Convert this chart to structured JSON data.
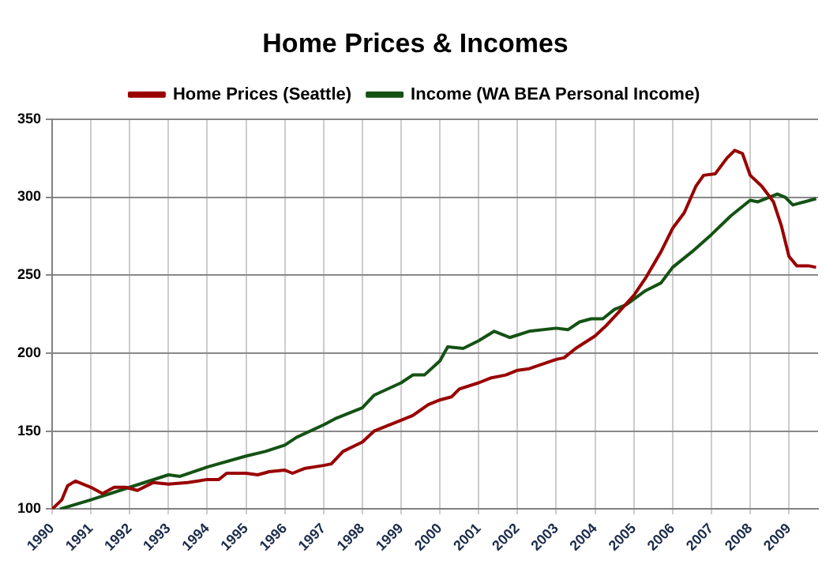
{
  "chart_data": {
    "type": "line",
    "title": "Home Prices & Incomes",
    "legend": "top",
    "grid": true,
    "marker": "none",
    "line_style": "solid",
    "xlim": [
      1990,
      2009.75
    ],
    "xticks": [
      1990,
      1991,
      1992,
      1993,
      1994,
      1995,
      1996,
      1997,
      1998,
      1999,
      2000,
      2001,
      2002,
      2003,
      2004,
      2005,
      2006,
      2007,
      2008,
      2009
    ],
    "ylim": [
      100,
      350
    ],
    "yticks": [
      100,
      150,
      200,
      250,
      300,
      350
    ],
    "series": [
      {
        "name": "Home Prices (Seattle)",
        "color": "#990000",
        "x": [
          1990,
          1990.25,
          1990.4,
          1990.6,
          1991,
          1991.3,
          1991.6,
          1991.9,
          1992.2,
          1992.6,
          1993,
          1993.5,
          1994,
          1994.3,
          1994.5,
          1995,
          1995.3,
          1995.6,
          1996,
          1996.2,
          1996.5,
          1997,
          1997.2,
          1997.5,
          1998,
          1998.3,
          1999,
          1999.3,
          1999.7,
          2000,
          2000.3,
          2000.5,
          2001,
          2001.3,
          2001.7,
          2002,
          2002.3,
          2003,
          2003.2,
          2003.5,
          2004,
          2004.3,
          2004.6,
          2005,
          2005.3,
          2005.7,
          2006,
          2006.3,
          2006.6,
          2006.8,
          2007.1,
          2007.4,
          2007.6,
          2007.8,
          2008,
          2008.3,
          2008.6,
          2008.8,
          2009,
          2009.2,
          2009.5,
          2009.7
        ],
        "values": [
          100,
          106,
          115,
          118,
          114,
          110,
          114,
          114,
          112,
          117,
          116,
          117,
          119,
          119,
          123,
          123,
          122,
          124,
          125,
          123,
          126,
          128,
          129,
          137,
          143,
          150,
          157,
          160,
          167,
          170,
          172,
          177,
          181,
          184,
          186,
          189,
          190,
          196,
          197,
          203,
          211,
          218,
          226,
          237,
          248,
          265,
          280,
          290,
          307,
          314,
          315,
          325,
          330,
          328,
          314,
          307,
          297,
          282,
          262,
          256,
          256,
          255
        ]
      },
      {
        "name": "Income (WA BEA Personal Income)",
        "color": "#145214",
        "x": [
          1990.2,
          1991,
          1992,
          1993,
          1993.3,
          1994,
          1995,
          1995.5,
          1996,
          1996.3,
          1997,
          1997.3,
          1998,
          1998.3,
          1999,
          1999.3,
          1999.6,
          2000,
          2000.2,
          2000.6,
          2001,
          2001.4,
          2001.8,
          2002.3,
          2003,
          2003.3,
          2003.6,
          2003.9,
          2004.2,
          2004.5,
          2004.8,
          2005.3,
          2005.7,
          2006,
          2006.5,
          2007,
          2007.5,
          2008,
          2008.2,
          2008.7,
          2008.9,
          2009.1,
          2009.4,
          2009.7
        ],
        "values": [
          100,
          106,
          114,
          122,
          121,
          127,
          134,
          137,
          141,
          146,
          154,
          158,
          165,
          173,
          181,
          186,
          186,
          195,
          204,
          203,
          208,
          214,
          210,
          214,
          216,
          215,
          220,
          222,
          222,
          228,
          231,
          240,
          245,
          255,
          265,
          276,
          288,
          298,
          297,
          302,
          300,
          295,
          297,
          299
        ]
      }
    ]
  }
}
